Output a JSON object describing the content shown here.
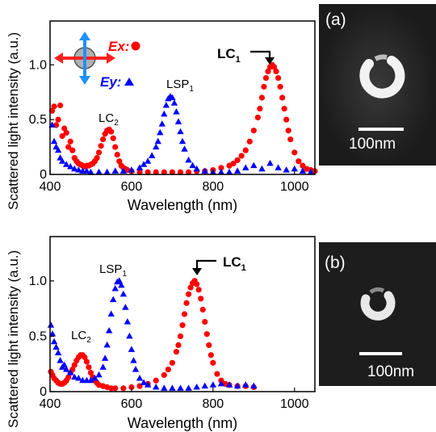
{
  "chart_data": [
    {
      "type": "scatter",
      "xlabel": "Wavelength (nm)",
      "ylabel": "Scattered light intensity (a.u.)",
      "xlim": [
        400,
        1050
      ],
      "ylim": [
        0,
        1.4
      ],
      "xticks": [
        "400",
        "600",
        "800",
        "1000"
      ],
      "yticks": [
        "0",
        "0.5",
        "1.0"
      ],
      "grid": false,
      "series": [
        {
          "name": "Ex",
          "marker": "circle",
          "color": "#ff0000",
          "x": [
            405,
            410,
            415,
            420,
            425,
            430,
            435,
            440,
            445,
            450,
            455,
            460,
            465,
            470,
            475,
            480,
            485,
            490,
            495,
            500,
            505,
            510,
            515,
            520,
            525,
            530,
            535,
            540,
            545,
            550,
            555,
            560,
            565,
            570,
            575,
            580,
            585,
            590,
            600,
            620,
            640,
            660,
            680,
            700,
            720,
            740,
            760,
            780,
            800,
            820,
            840,
            850,
            860,
            870,
            880,
            890,
            900,
            910,
            915,
            920,
            925,
            930,
            935,
            940,
            945,
            950,
            955,
            960,
            965,
            970,
            975,
            980,
            985,
            990,
            1000,
            1010,
            1020,
            1030,
            1040,
            1050
          ],
          "y": [
            0.58,
            0.62,
            0.45,
            0.5,
            0.63,
            0.35,
            0.42,
            0.38,
            0.25,
            0.3,
            0.22,
            0.15,
            0.12,
            0.1,
            0.09,
            0.08,
            0.07,
            0.08,
            0.08,
            0.09,
            0.1,
            0.12,
            0.15,
            0.2,
            0.26,
            0.32,
            0.37,
            0.4,
            0.41,
            0.39,
            0.33,
            0.25,
            0.18,
            0.12,
            0.08,
            0.06,
            0.05,
            0.04,
            0.03,
            0.02,
            0.02,
            0.02,
            0.02,
            0.02,
            0.02,
            0.02,
            0.03,
            0.03,
            0.04,
            0.06,
            0.08,
            0.1,
            0.13,
            0.17,
            0.22,
            0.3,
            0.4,
            0.52,
            0.6,
            0.7,
            0.8,
            0.88,
            0.94,
            0.98,
            1.0,
            0.98,
            0.94,
            0.88,
            0.8,
            0.7,
            0.6,
            0.5,
            0.4,
            0.32,
            0.2,
            0.12,
            0.08,
            0.05,
            0.04,
            0.03
          ]
        },
        {
          "name": "Ey",
          "marker": "triangle",
          "color": "#0000ff",
          "x": [
            405,
            410,
            415,
            420,
            425,
            430,
            440,
            450,
            460,
            470,
            480,
            490,
            500,
            520,
            540,
            560,
            580,
            600,
            620,
            630,
            640,
            650,
            660,
            665,
            670,
            675,
            680,
            685,
            690,
            695,
            700,
            705,
            710,
            715,
            720,
            725,
            730,
            740,
            750,
            760,
            780,
            800,
            820,
            840,
            860,
            880,
            900,
            920,
            940,
            960,
            980,
            1000,
            1020,
            1040
          ],
          "y": [
            0.45,
            0.3,
            0.25,
            0.22,
            0.15,
            0.12,
            0.09,
            0.07,
            0.05,
            0.04,
            0.03,
            0.03,
            0.02,
            0.02,
            0.02,
            0.03,
            0.03,
            0.04,
            0.06,
            0.09,
            0.12,
            0.17,
            0.25,
            0.3,
            0.38,
            0.46,
            0.55,
            0.63,
            0.69,
            0.71,
            0.7,
            0.65,
            0.57,
            0.48,
            0.39,
            0.3,
            0.23,
            0.13,
            0.08,
            0.05,
            0.03,
            0.02,
            0.02,
            0.02,
            0.03,
            0.06,
            0.08,
            0.05,
            0.1,
            0.06,
            0.04,
            0.05,
            0.03,
            0.02
          ]
        }
      ],
      "annotations": {
        "lc1": "LC",
        "lc1_sub": "1",
        "lc2": "LC",
        "lc2_sub": "2",
        "lsp1": "LSP",
        "lsp1_sub": "1",
        "ex_legend": "Ex",
        "ey_legend": "Ey",
        "legend_sep": ":",
        "lc1_peak": [
          945,
          1.0
        ],
        "lc2_peak": [
          548,
          0.41
        ],
        "lsp1_peak": [
          698,
          0.71
        ]
      }
    },
    {
      "type": "scatter",
      "xlabel": "Wavelength (nm)",
      "ylabel": "Scattered light intensity (a.u.)",
      "xlim": [
        400,
        1050
      ],
      "ylim": [
        0,
        1.4
      ],
      "xticks": [
        "400",
        "600",
        "800",
        "1000"
      ],
      "yticks": [
        "0",
        "0.5",
        "1.0"
      ],
      "grid": false,
      "series": [
        {
          "name": "Ex",
          "marker": "circle",
          "color": "#ff0000",
          "x": [
            402,
            406,
            410,
            415,
            420,
            425,
            430,
            435,
            440,
            445,
            450,
            455,
            460,
            465,
            470,
            475,
            480,
            485,
            490,
            495,
            500,
            505,
            510,
            515,
            520,
            530,
            540,
            550,
            560,
            580,
            600,
            620,
            640,
            660,
            680,
            690,
            700,
            710,
            715,
            720,
            725,
            730,
            735,
            740,
            745,
            750,
            755,
            760,
            765,
            770,
            775,
            780,
            785,
            790,
            795,
            800,
            810,
            820,
            830,
            840,
            860,
            880,
            900
          ],
          "y": [
            0.18,
            0.15,
            0.12,
            0.1,
            0.08,
            0.07,
            0.07,
            0.08,
            0.1,
            0.13,
            0.17,
            0.2,
            0.24,
            0.28,
            0.31,
            0.33,
            0.33,
            0.31,
            0.27,
            0.22,
            0.17,
            0.13,
            0.1,
            0.08,
            0.06,
            0.05,
            0.04,
            0.03,
            0.03,
            0.03,
            0.04,
            0.05,
            0.07,
            0.1,
            0.15,
            0.2,
            0.26,
            0.36,
            0.42,
            0.5,
            0.6,
            0.7,
            0.8,
            0.88,
            0.94,
            0.98,
            1.0,
            0.97,
            0.92,
            0.84,
            0.74,
            0.63,
            0.52,
            0.42,
            0.33,
            0.26,
            0.16,
            0.1,
            0.07,
            0.06,
            0.05,
            0.05,
            0.04
          ]
        },
        {
          "name": "Ey",
          "marker": "triangle",
          "color": "#0000ff",
          "x": [
            402,
            406,
            410,
            415,
            420,
            425,
            430,
            435,
            440,
            450,
            460,
            470,
            480,
            490,
            500,
            510,
            520,
            530,
            535,
            540,
            545,
            550,
            555,
            560,
            565,
            570,
            575,
            580,
            585,
            590,
            595,
            600,
            605,
            610,
            620,
            630,
            640,
            660,
            680,
            700,
            720,
            740,
            760,
            780,
            800,
            820,
            840,
            860,
            880,
            900
          ],
          "y": [
            0.6,
            0.52,
            0.45,
            0.4,
            0.35,
            0.28,
            0.22,
            0.24,
            0.2,
            0.17,
            0.13,
            0.12,
            0.1,
            0.1,
            0.1,
            0.12,
            0.15,
            0.22,
            0.3,
            0.42,
            0.55,
            0.7,
            0.83,
            0.93,
            0.99,
            1.0,
            0.96,
            0.88,
            0.76,
            0.63,
            0.5,
            0.38,
            0.28,
            0.2,
            0.12,
            0.08,
            0.06,
            0.04,
            0.03,
            0.03,
            0.03,
            0.03,
            0.04,
            0.05,
            0.06,
            0.07,
            0.06,
            0.05,
            0.06,
            0.05
          ]
        }
      ],
      "annotations": {
        "lc1": "LC",
        "lc1_sub": "1",
        "lc2": "LC",
        "lc2_sub": "2",
        "lsp1": "LSP",
        "lsp1_sub": "1",
        "lc1_peak": [
          760,
          1.0
        ],
        "lc2_peak": [
          480,
          0.33
        ],
        "lsp1_peak": [
          570,
          1.0
        ]
      }
    }
  ],
  "sem_panels": [
    {
      "label": "(a)",
      "scale": "100nm"
    },
    {
      "label": "(b)",
      "scale": "100nm"
    }
  ],
  "colors": {
    "ex": "#ff0000",
    "ey": "#0000ff",
    "axis": "#000000",
    "sem_bg": "#1b1b1b"
  },
  "icons": {
    "polarization_legend": "polarization-arrows-icon"
  }
}
